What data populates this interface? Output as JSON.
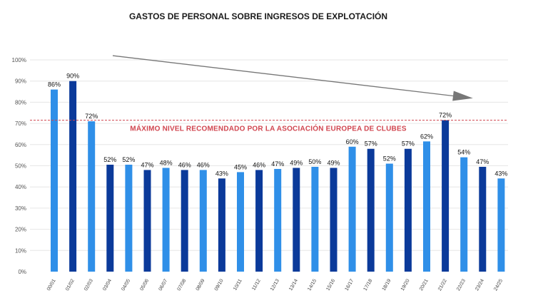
{
  "chart_data": {
    "type": "bar",
    "title": "GASTOS DE PERSONAL SOBRE INGRESOS DE EXPLOTACIÓN",
    "categories": [
      "00/01",
      "01/02",
      "02/03",
      "03/04",
      "04/05",
      "05/06",
      "06/07",
      "07/08",
      "08/09",
      "09/10",
      "10/11",
      "11/12",
      "12/13",
      "13/14",
      "14/15",
      "15/16",
      "16/17",
      "17/18",
      "18/19",
      "19/20",
      "20/21",
      "21/22",
      "22/23",
      "23/24",
      "24/25"
    ],
    "values": [
      86,
      90,
      72,
      52,
      52,
      47,
      48,
      46,
      46,
      43,
      45,
      46,
      47,
      49,
      50,
      49,
      60,
      57,
      52,
      57,
      62,
      72,
      54,
      47,
      43
    ],
    "bar_value_fill": [
      86,
      90,
      71,
      50.5,
      50.5,
      48,
      49,
      48,
      48,
      44,
      47,
      48,
      48.5,
      49,
      49.5,
      49,
      59,
      58,
      51,
      58,
      61.5,
      71.5,
      54,
      49.5,
      44
    ],
    "data_labels": [
      "86%",
      "90%",
      "72%",
      "52%",
      "52%",
      "47%",
      "48%",
      "46%",
      "46%",
      "43%",
      "45%",
      "46%",
      "47%",
      "49%",
      "50%",
      "49%",
      "60%",
      "57%",
      "52%",
      "57%",
      "62%",
      "72%",
      "54%",
      "47%",
      "43%"
    ],
    "bar_shades": [
      "light",
      "dark",
      "light",
      "dark",
      "light",
      "dark",
      "light",
      "dark",
      "light",
      "dark",
      "light",
      "dark",
      "light",
      "dark",
      "light",
      "dark",
      "light",
      "dark",
      "light",
      "dark",
      "light",
      "dark",
      "light",
      "dark",
      "light"
    ],
    "ylim": [
      0,
      100
    ],
    "yticks": [
      0,
      10,
      20,
      30,
      40,
      50,
      60,
      70,
      80,
      90,
      100
    ],
    "ytick_labels": [
      "0%",
      "10%",
      "20%",
      "30%",
      "40%",
      "50%",
      "60%",
      "70%",
      "80%",
      "90%",
      "100%"
    ],
    "xlabel": "",
    "ylabel": "",
    "grid": true,
    "reference_line": {
      "value": 71.5,
      "label": "MÁXIMO NIVEL RECOMENDADO POR LA ASOCIACIÓN EUROPEA DE CLUBES",
      "color": "#d0454f"
    },
    "trend_arrow": {
      "from_value": 102,
      "to_value": 83,
      "color": "#777777"
    },
    "colors": {
      "light": "#2f8fe8",
      "dark": "#0b3a9a",
      "grid": "#e6e6e6"
    }
  }
}
